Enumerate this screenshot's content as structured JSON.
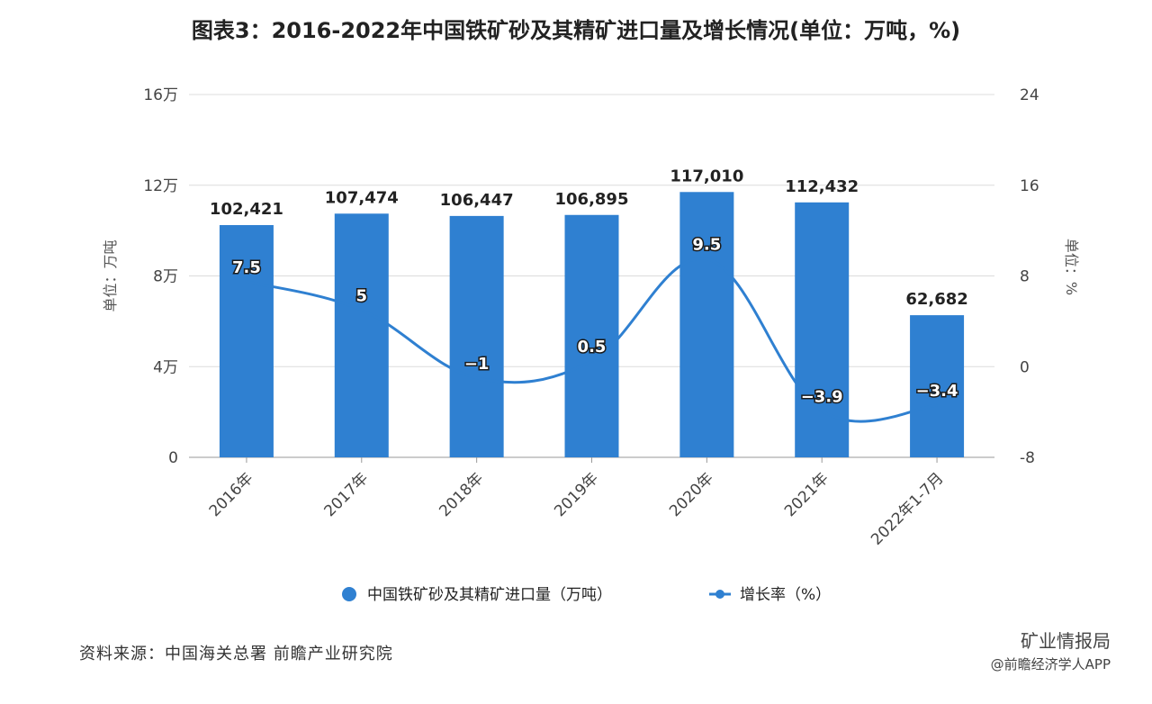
{
  "chart_data": {
    "type": "bar",
    "title": "图表3：2016-2022年中国铁矿砂及其精矿进口量及增长情况(单位：万吨，%)",
    "categories": [
      "2016年",
      "2017年",
      "2018年",
      "2019年",
      "2020年",
      "2021年",
      "2022年1-7月"
    ],
    "series": [
      {
        "name": "中国铁矿砂及其精矿进口量（万吨）",
        "type": "bar",
        "axis": "left",
        "color": "#2f80d1",
        "values": [
          102421,
          107474,
          106447,
          106895,
          117010,
          112432,
          62682
        ],
        "labels": [
          "102,421",
          "107,474",
          "106,447",
          "106,895",
          "117,010",
          "112,432",
          "62,682"
        ]
      },
      {
        "name": "增长率（%）",
        "type": "line",
        "axis": "right",
        "color": "#2f80d1",
        "values": [
          7.5,
          5,
          -1,
          0.5,
          9.5,
          -3.9,
          -3.4
        ],
        "labels": [
          "7.5",
          "5",
          "−1",
          "0.5",
          "9.5",
          "−3.9",
          "−3.4"
        ]
      }
    ],
    "y_left": {
      "label": "单位：万吨",
      "ylim": [
        0,
        160000
      ],
      "ticks": [
        0,
        40000,
        80000,
        120000,
        160000
      ],
      "tick_labels": [
        "0",
        "4万",
        "8万",
        "12万",
        "16万"
      ]
    },
    "y_right": {
      "label": "单位：%",
      "ylim": [
        -8,
        24
      ],
      "ticks": [
        -8,
        0,
        8,
        16,
        24
      ],
      "tick_labels": [
        "-8",
        "0",
        "8",
        "16",
        "24"
      ]
    },
    "grid": true,
    "legend": "bottom-center"
  },
  "footer": {
    "source": "资料来源：中国海关总署 前瞻产业研究院",
    "watermark_line1": "矿业情报局",
    "watermark_line2": "@前瞻经济学人APP"
  }
}
